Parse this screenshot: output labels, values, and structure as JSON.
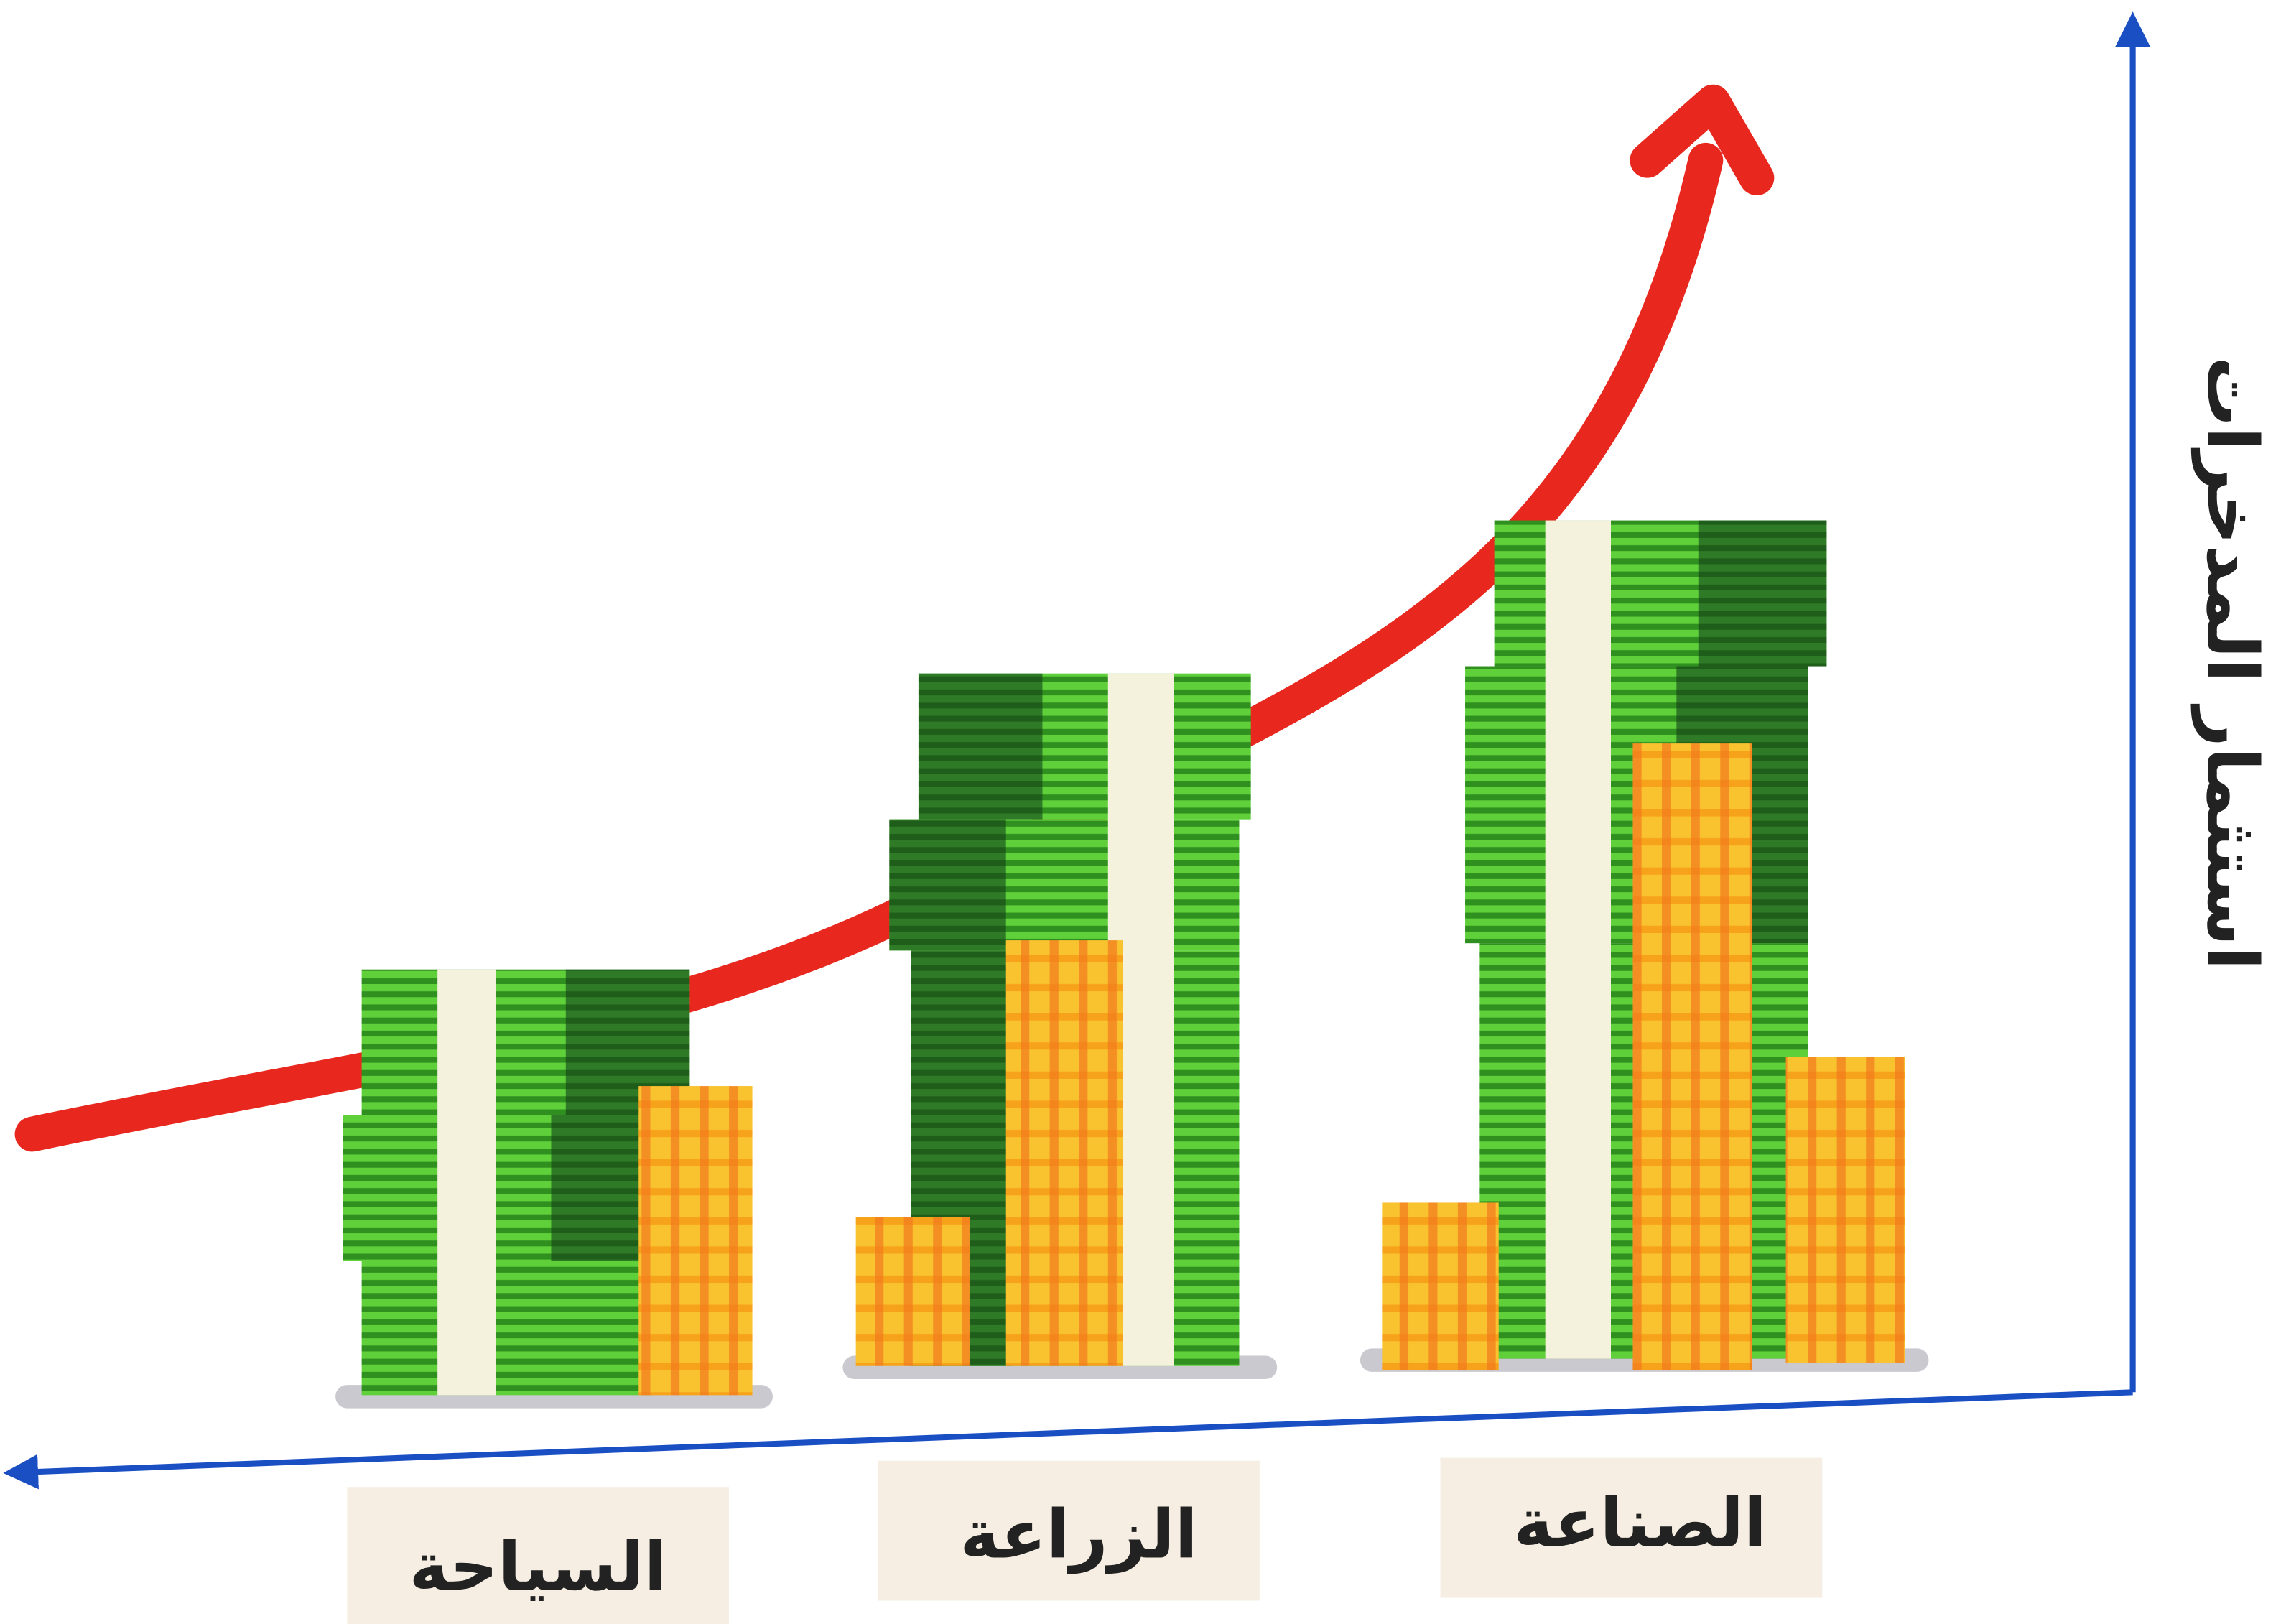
{
  "axis_label": "استثمار المدخرات",
  "categories": [
    "السياحة",
    "الزراعة",
    "الصناعة"
  ]
}
